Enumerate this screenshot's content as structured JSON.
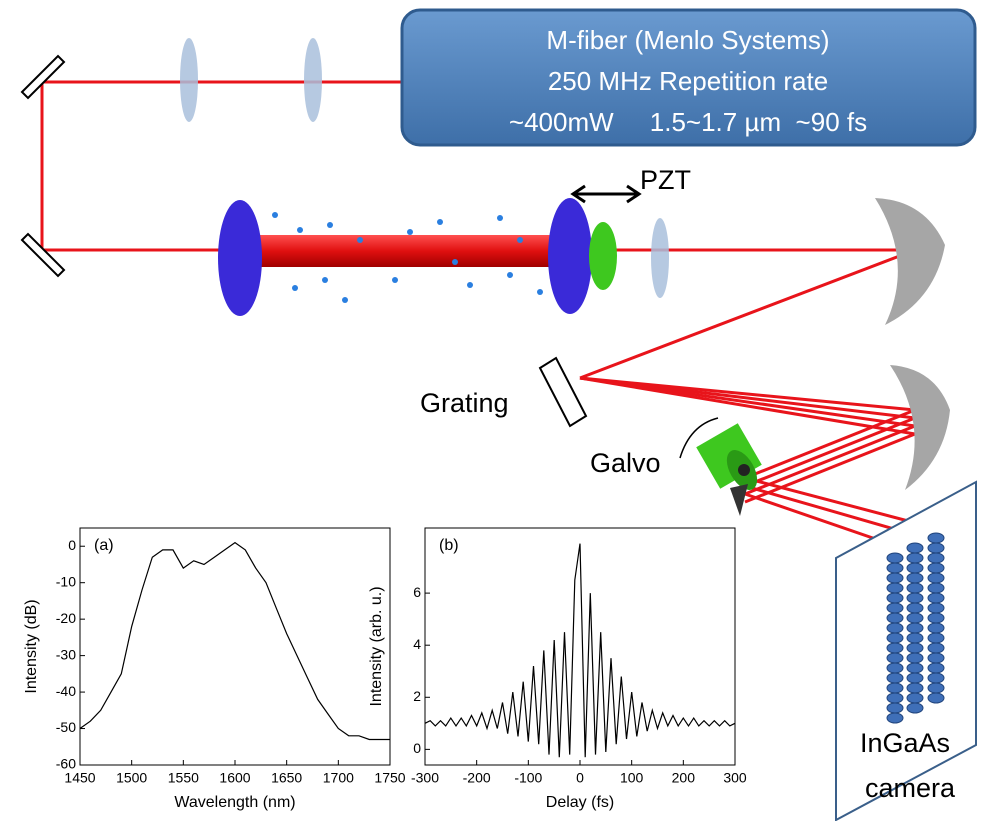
{
  "diagram": {
    "laser": {
      "lines": [
        "M-fiber (Menlo Systems)",
        "250 MHz Repetition rate",
        "~400mW     1.5~1.7 µm  ~90 fs"
      ]
    },
    "labels": {
      "pzt": "PZT",
      "grating": "Grating",
      "galvo": "Galvo",
      "camera": [
        "InGaAs",
        "camera"
      ]
    }
  },
  "chart_data": [
    {
      "type": "line",
      "panel_label": "(a)",
      "x_label": "Wavelength (nm)",
      "y_label": "Intensity (dB)",
      "color": "#000000",
      "x": [
        1450,
        1460,
        1470,
        1480,
        1490,
        1500,
        1510,
        1520,
        1530,
        1540,
        1550,
        1560,
        1570,
        1580,
        1590,
        1600,
        1610,
        1620,
        1630,
        1640,
        1650,
        1660,
        1670,
        1680,
        1690,
        1700,
        1710,
        1720,
        1730,
        1740,
        1750
      ],
      "values": [
        -50,
        -48,
        -45,
        -40,
        -35,
        -22,
        -12,
        -3,
        -1,
        -1,
        -6,
        -4,
        -5,
        -3,
        -1,
        1,
        -1,
        -6,
        -10,
        -17,
        -24,
        -30,
        -36,
        -42,
        -46,
        -50,
        -52,
        -52,
        -53,
        -53,
        -53
      ],
      "xlim": [
        1450,
        1750
      ],
      "xticks": [
        1450,
        1500,
        1550,
        1600,
        1650,
        1700,
        1750
      ],
      "ylim": [
        -60,
        5
      ],
      "yticks": [
        -60,
        -50,
        -40,
        -30,
        -20,
        -10,
        0
      ]
    },
    {
      "type": "line",
      "panel_label": "(b)",
      "x_label": "Delay (fs)",
      "y_label": "Intensity (arb. u.)",
      "color": "#000000",
      "x": [
        -300,
        -290,
        -280,
        -270,
        -260,
        -250,
        -240,
        -230,
        -220,
        -210,
        -200,
        -190,
        -180,
        -170,
        -160,
        -150,
        -140,
        -130,
        -120,
        -110,
        -100,
        -90,
        -80,
        -70,
        -60,
        -50,
        -40,
        -30,
        -20,
        -10,
        0,
        10,
        20,
        30,
        40,
        50,
        60,
        70,
        80,
        90,
        100,
        110,
        120,
        130,
        140,
        150,
        160,
        170,
        180,
        190,
        200,
        210,
        220,
        230,
        240,
        250,
        260,
        270,
        280,
        290,
        300
      ],
      "values": [
        1,
        1.1,
        0.9,
        1.1,
        0.9,
        1.2,
        0.9,
        1.2,
        0.9,
        1.3,
        0.9,
        1.4,
        0.8,
        1.5,
        0.8,
        1.8,
        0.6,
        2.2,
        0.5,
        2.6,
        0.3,
        3.2,
        0.2,
        3.8,
        -0.2,
        4.2,
        -0.3,
        4.5,
        -0.2,
        6.5,
        7.9,
        -0.3,
        6,
        -0.2,
        4.5,
        -0.1,
        3.5,
        0.2,
        2.8,
        0.4,
        2.2,
        0.5,
        1.8,
        0.7,
        1.5,
        0.8,
        1.4,
        0.9,
        1.3,
        0.9,
        1.2,
        0.9,
        1.2,
        0.9,
        1.1,
        0.9,
        1.1,
        0.9,
        1.1,
        0.9,
        1.0
      ],
      "xlim": [
        -300,
        300
      ],
      "xticks": [
        -300,
        -200,
        -100,
        0,
        100,
        200,
        300
      ],
      "ylim": [
        -0.6,
        8.5
      ],
      "yticks": [
        0,
        2,
        4,
        6
      ]
    }
  ]
}
